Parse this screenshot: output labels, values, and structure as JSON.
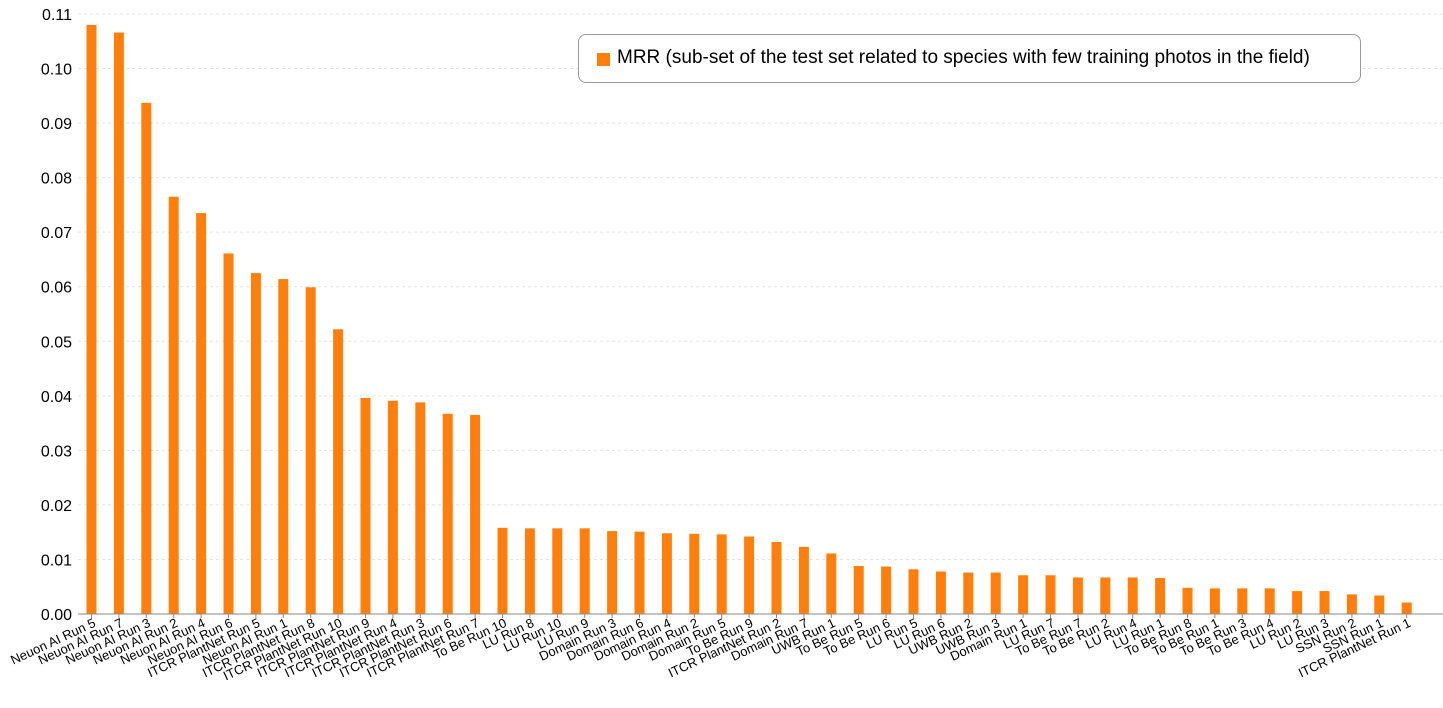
{
  "chart_data": {
    "type": "bar",
    "title": "",
    "xlabel": "",
    "ylabel": "",
    "ylim": [
      0,
      0.11
    ],
    "yticks": [
      "0.00",
      "0.01",
      "0.02",
      "0.03",
      "0.04",
      "0.05",
      "0.06",
      "0.07",
      "0.08",
      "0.09",
      "0.10",
      "0.11"
    ],
    "grid": true,
    "legend_position": "top-right",
    "bar_color": "#ff7f0e",
    "categories": [
      "Neuon AI Run 5",
      "Neuon AI Run 7",
      "Neuon AI Run 3",
      "Neuon AI Run 2",
      "Neuon AI Run 4",
      "Neuon AI Run 6",
      "ITCR PlantNet Run 5",
      "Neuon AI Run 1",
      "ITCR PlantNet Run 8",
      "ITCR PlantNet Run 10",
      "ITCR PlantNet Run 9",
      "ITCR PlantNet Run 4",
      "ITCR PlantNet Run 3",
      "ITCR PlantNet Run 6",
      "ITCR PlantNet Run 7",
      "To Be Run 10",
      "LU Run 8",
      "LU Run 10",
      "LU Run 9",
      "Domain Run 3",
      "Domain Run 6",
      "Domain Run 4",
      "Domain Run 2",
      "Domain Run 5",
      "To Be Run 9",
      "ITCR PlantNet Run 2",
      "Domain Run 7",
      "UWB Run 1",
      "To Be Run 5",
      "To Be Run 6",
      "LU Run 5",
      "LU Run 6",
      "UWB Run 2",
      "UWB Run 3",
      "Domain Run 1",
      "LU Run 7",
      "To Be Run 7",
      "To Be Run 2",
      "LU Run 4",
      "LU Run 1",
      "To Be Run 8",
      "To Be Run 1",
      "To Be Run 3",
      "To Be Run 4",
      "LU Run 2",
      "LU Run 3",
      "SSN Run 2",
      "SSN Run 1",
      "ITCR PlantNet Run 1"
    ],
    "series": [
      {
        "name": "MRR (sub-set of the test set related to species with few training photos in the field)",
        "values": [
          0.108,
          0.1066,
          0.0937,
          0.0765,
          0.0735,
          0.0661,
          0.0625,
          0.0614,
          0.0599,
          0.0522,
          0.0396,
          0.0391,
          0.0388,
          0.0367,
          0.0365,
          0.0158,
          0.0157,
          0.0157,
          0.0157,
          0.0152,
          0.0151,
          0.0148,
          0.0147,
          0.0146,
          0.0142,
          0.0132,
          0.0123,
          0.0111,
          0.0088,
          0.0087,
          0.0082,
          0.0078,
          0.0076,
          0.0076,
          0.0071,
          0.0071,
          0.0067,
          0.0067,
          0.0067,
          0.0066,
          0.0048,
          0.0047,
          0.0047,
          0.0047,
          0.0042,
          0.0042,
          0.0036,
          0.0034,
          0.0021
        ]
      }
    ]
  }
}
